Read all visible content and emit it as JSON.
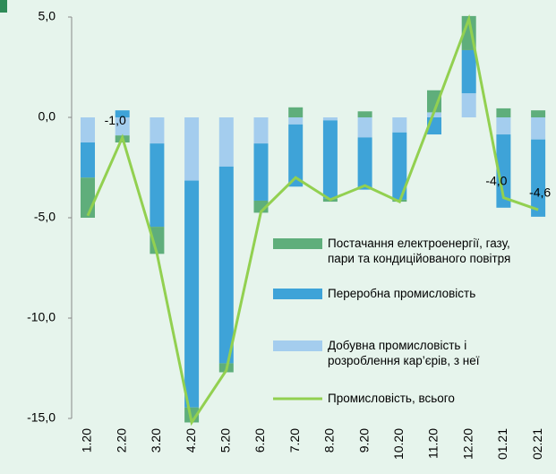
{
  "chart_data": {
    "type": "bar",
    "categories": [
      "1.20",
      "2.20",
      "3.20",
      "4.20",
      "5.20",
      "6.20",
      "7.20",
      "8.20",
      "9.20",
      "10.20",
      "11.20",
      "12.20",
      "01.21",
      "02.21"
    ],
    "series": [
      {
        "name": "Постачання електроенергії, газу, пари та кондиційованого повітря",
        "color": "#5fae7b",
        "type": "bar",
        "values": [
          -2.0,
          -0.35,
          -1.35,
          -0.75,
          -0.45,
          -0.6,
          0.5,
          -0.15,
          0.3,
          -0.1,
          1.1,
          1.7,
          0.45,
          0.35
        ]
      },
      {
        "name": "Переробна промисловість",
        "color": "#3ea3d8",
        "type": "bar",
        "values": [
          -1.75,
          0.35,
          -4.15,
          -11.3,
          -9.8,
          -2.85,
          -3.1,
          -3.9,
          -2.6,
          -3.35,
          -0.85,
          2.15,
          -3.65,
          -3.85
        ]
      },
      {
        "name": "Добувна промисловість і розроблення кар’єрів, з неї",
        "color": "#a4cdee",
        "type": "bar",
        "values": [
          -1.25,
          -0.9,
          -1.3,
          -3.15,
          -2.45,
          -1.3,
          -0.35,
          -0.15,
          -1.0,
          -0.75,
          0.25,
          1.2,
          -0.85,
          -1.1
        ]
      },
      {
        "name": "Промисловість, всього",
        "color": "#92d050",
        "type": "line",
        "values": [
          -4.9,
          -1.0,
          -6.8,
          -15.2,
          -12.6,
          -4.7,
          -3.0,
          -4.1,
          -3.4,
          -4.2,
          0.3,
          4.9,
          -4.0,
          -4.6
        ],
        "value_labels": [
          null,
          "-1,0",
          null,
          null,
          null,
          null,
          null,
          null,
          null,
          null,
          null,
          null,
          "-4,0",
          "-4,6"
        ]
      }
    ],
    "ylim": [
      -15,
      5
    ],
    "yticks": [
      {
        "value": -15,
        "label": "-15,0"
      },
      {
        "value": -10,
        "label": "-10,0"
      },
      {
        "value": -5,
        "label": "-5,0"
      },
      {
        "value": 0,
        "label": "0,0"
      },
      {
        "value": 5,
        "label": "5,0"
      }
    ]
  }
}
